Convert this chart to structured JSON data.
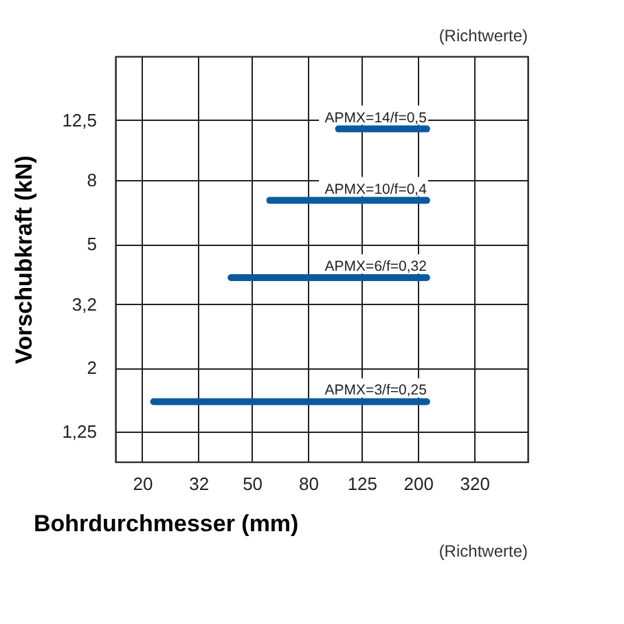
{
  "chart_data": {
    "type": "line",
    "xlabel": "Bohrdurchmesser (mm)",
    "ylabel": "Vorschubkraft (kN)",
    "annotations": [
      "(Richtwerte)",
      "(Richtwerte)"
    ],
    "log": "xy",
    "grid": true,
    "marker": "none",
    "line_style": "solid",
    "xlim": [
      16,
      500
    ],
    "xticks": [
      20,
      32,
      50,
      80,
      125,
      200,
      320
    ],
    "ylim": [
      1,
      20
    ],
    "yticks": [
      {
        "value": 1.25,
        "label": "1,25"
      },
      2,
      {
        "value": 3.2,
        "label": "3,2"
      },
      5,
      8,
      {
        "value": 12.5,
        "label": "12,5"
      }
    ],
    "series": [
      {
        "name": "APMX=3/f=0,25",
        "color": "#0a5aa0",
        "x": [
          22,
          215
        ],
        "values": [
          1.56,
          1.56
        ]
      },
      {
        "name": "APMX=6/f=0,32",
        "color": "#0a5aa0",
        "x": [
          42,
          215
        ],
        "values": [
          3.9,
          3.9
        ]
      },
      {
        "name": "APMX=10/f=0,4",
        "color": "#0a5aa0",
        "x": [
          58,
          215
        ],
        "values": [
          6.9,
          6.9
        ]
      },
      {
        "name": "APMX=14/f=0,5",
        "color": "#0a5aa0",
        "x": [
          103,
          215
        ],
        "values": [
          11.7,
          11.7
        ]
      }
    ]
  }
}
